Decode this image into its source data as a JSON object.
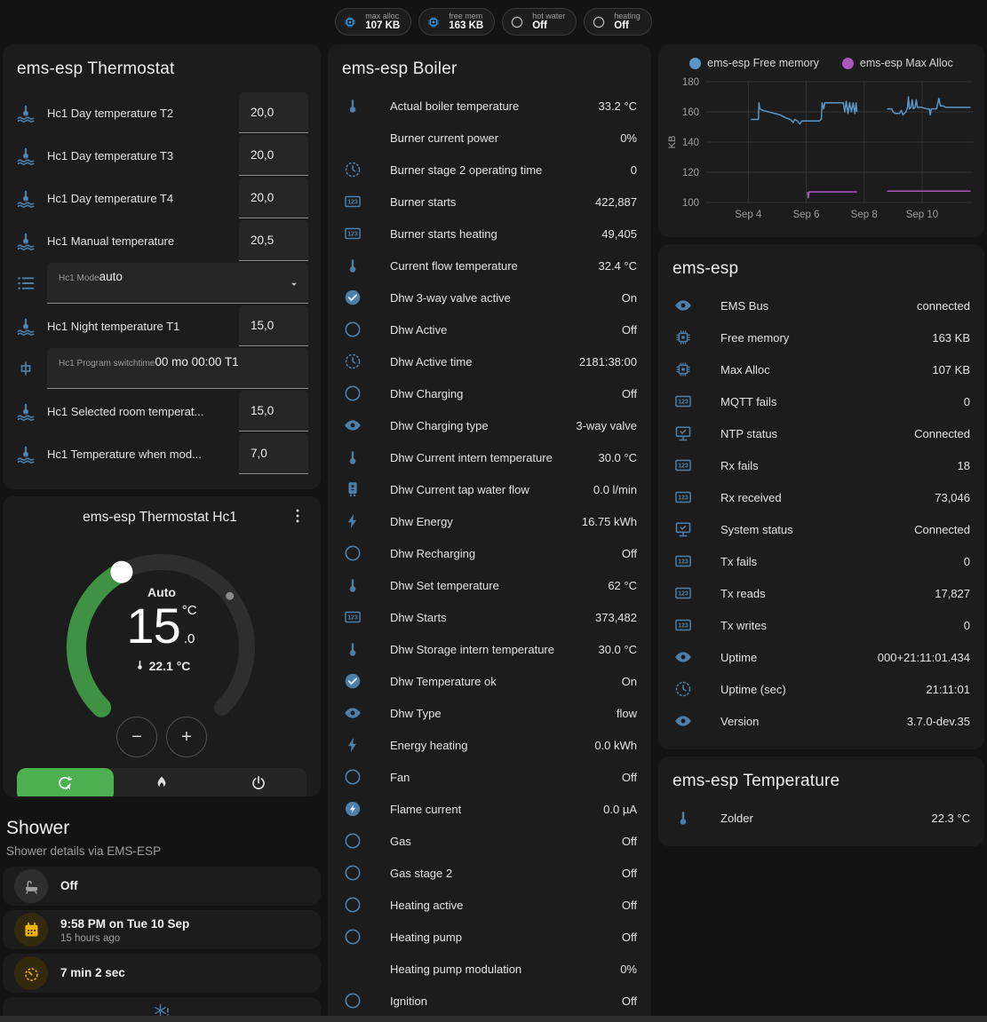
{
  "colors": {
    "page": "#131313",
    "card": "#1c1c1c",
    "icon_blue": "#4d7fab",
    "badge_blue": "#31a3f5",
    "green_arc": "#3f9244",
    "green_active": "#4caf50",
    "amber": "#eeb206",
    "chart_blue": "#5b96c8",
    "chart_purple": "#ae55c0",
    "secondary_text": "#9e9e9e"
  },
  "badges": [
    {
      "icon": "chip",
      "label": "max alloc",
      "value": "107 KB"
    },
    {
      "icon": "chip",
      "label": "free mem",
      "value": "163 KB"
    },
    {
      "icon": "circle",
      "label": "hot water",
      "value": "Off"
    },
    {
      "icon": "circle",
      "label": "heating",
      "value": "Off"
    }
  ],
  "thermostat": {
    "title": "ems-esp Thermostat",
    "items": [
      {
        "type": "number",
        "icon": "thermometer-water",
        "label": "Hc1 Day temperature T2",
        "value": "20,0"
      },
      {
        "type": "number",
        "icon": "thermometer-water",
        "label": "Hc1 Day temperature T3",
        "value": "20,0"
      },
      {
        "type": "number",
        "icon": "thermometer-water",
        "label": "Hc1 Day temperature T4",
        "value": "20,0"
      },
      {
        "type": "number",
        "icon": "thermometer-water",
        "label": "Hc1 Manual temperature",
        "value": "20,5"
      },
      {
        "type": "select",
        "icon": "list",
        "label": "Hc1 Mode",
        "value": "auto"
      },
      {
        "type": "number",
        "icon": "thermometer-water",
        "label": "Hc1 Night temperature T1",
        "value": "15,0"
      },
      {
        "type": "text",
        "icon": "pipe",
        "label": "Hc1 Program switchtime",
        "value": "00 mo 00:00 T1"
      },
      {
        "type": "number",
        "icon": "thermometer-water",
        "label": "Hc1 Selected room temperat...",
        "value": "15,0"
      },
      {
        "type": "number",
        "icon": "thermometer-water",
        "label": "Hc1 Temperature when mod...",
        "value": "7,0"
      }
    ]
  },
  "dial": {
    "title": "ems-esp Thermostat Hc1",
    "mode_label": "Auto",
    "target_int": "15",
    "target_unit": "°C",
    "target_dec": ".0",
    "current_temp": "22.1 °C",
    "minus": "−",
    "plus": "+",
    "modes": [
      {
        "icon": "thermostat-auto",
        "active": true
      },
      {
        "icon": "fire",
        "active": false
      },
      {
        "icon": "power",
        "active": false
      }
    ]
  },
  "shower": {
    "title": "Shower",
    "subtitle": "Shower details via EMS-ESP",
    "cards": [
      {
        "icon": "bathtub",
        "tint": "gray",
        "primary": "Off"
      },
      {
        "icon": "calendar",
        "tint": "amber",
        "primary": "9:58 PM on Tue 10 Sep",
        "secondary": "15 hours ago"
      },
      {
        "icon": "timer",
        "tint": "amber",
        "primary": "7 min 2 sec"
      },
      {
        "icon": "snowflake-alert",
        "tint": "blue",
        "centered": true
      }
    ]
  },
  "boiler": {
    "title": "ems-esp Boiler",
    "rows": [
      {
        "icon": "thermometer",
        "label": "Actual boiler temperature",
        "value": "33.2 °C"
      },
      {
        "icon": "angle",
        "label": "Burner current power",
        "value": "0%"
      },
      {
        "icon": "clock",
        "label": "Burner stage 2 operating time",
        "value": "0"
      },
      {
        "icon": "counter",
        "label": "Burner starts",
        "value": "422,887"
      },
      {
        "icon": "counter",
        "label": "Burner starts heating",
        "value": "49,405"
      },
      {
        "icon": "thermometer",
        "label": "Current flow temperature",
        "value": "32.4 °C"
      },
      {
        "icon": "check-circle",
        "label": "Dhw 3-way valve active",
        "value": "On"
      },
      {
        "icon": "circle",
        "label": "Dhw Active",
        "value": "Off"
      },
      {
        "icon": "clock",
        "label": "Dhw Active time",
        "value": "2181:38:00"
      },
      {
        "icon": "circle",
        "label": "Dhw Charging",
        "value": "Off"
      },
      {
        "icon": "eye",
        "label": "Dhw Charging type",
        "value": "3-way valve"
      },
      {
        "icon": "thermometer",
        "label": "Dhw Current intern temperature",
        "value": "30.0 °C"
      },
      {
        "icon": "water-boiler",
        "label": "Dhw Current tap water flow",
        "value": "0.0 l/min"
      },
      {
        "icon": "flash",
        "label": "Dhw Energy",
        "value": "16.75 kWh"
      },
      {
        "icon": "circle",
        "label": "Dhw Recharging",
        "value": "Off"
      },
      {
        "icon": "thermometer",
        "label": "Dhw Set temperature",
        "value": "62 °C"
      },
      {
        "icon": "counter",
        "label": "Dhw Starts",
        "value": "373,482"
      },
      {
        "icon": "thermometer",
        "label": "Dhw Storage intern temperature",
        "value": "30.0 °C"
      },
      {
        "icon": "check-circle",
        "label": "Dhw Temperature ok",
        "value": "On"
      },
      {
        "icon": "eye",
        "label": "Dhw Type",
        "value": "flow"
      },
      {
        "icon": "flash",
        "label": "Energy heating",
        "value": "0.0 kWh"
      },
      {
        "icon": "circle",
        "label": "Fan",
        "value": "Off"
      },
      {
        "icon": "flash-circle",
        "label": "Flame current",
        "value": "0.0 µA"
      },
      {
        "icon": "circle",
        "label": "Gas",
        "value": "Off"
      },
      {
        "icon": "circle",
        "label": "Gas stage 2",
        "value": "Off"
      },
      {
        "icon": "circle",
        "label": "Heating active",
        "value": "Off"
      },
      {
        "icon": "circle",
        "label": "Heating pump",
        "value": "Off"
      },
      {
        "icon": "angle",
        "label": "Heating pump modulation",
        "value": "0%"
      },
      {
        "icon": "circle",
        "label": "Ignition",
        "value": "Off"
      }
    ]
  },
  "chart": {
    "chart_data": {
      "type": "line",
      "ylabel": "KB",
      "ylim": [
        100,
        180
      ],
      "yticks": [
        100,
        120,
        140,
        160,
        180
      ],
      "xlim": [
        2.55,
        11.75
      ],
      "xticks": [
        {
          "v": 4,
          "label": "Sep 4"
        },
        {
          "v": 6,
          "label": "Sep 6"
        },
        {
          "v": 8,
          "label": "Sep 8"
        },
        {
          "v": 10,
          "label": "Sep 10"
        }
      ],
      "grid": true,
      "legend_position": "top",
      "series": [
        {
          "name": "ems-esp Free memory",
          "color": "#5b96c8",
          "segments": [
            [
              [
                4.09,
                155
              ],
              [
                4.35,
                155
              ],
              [
                4.37,
                166
              ],
              [
                4.4,
                162
              ],
              [
                4.5,
                161
              ],
              [
                4.7,
                160
              ],
              [
                4.9,
                159
              ],
              [
                5.1,
                158
              ],
              [
                5.3,
                156
              ],
              [
                5.45,
                155
              ],
              [
                5.55,
                153
              ],
              [
                5.6,
                155
              ],
              [
                5.7,
                154
              ],
              [
                5.78,
                152
              ],
              [
                5.85,
                154
              ],
              [
                6.1,
                154
              ],
              [
                6.45,
                154
              ],
              [
                6.52,
                155
              ],
              [
                6.55,
                166
              ],
              [
                6.6,
                162
              ],
              [
                6.64,
                166
              ],
              [
                7.0,
                166
              ],
              [
                7.28,
                166
              ],
              [
                7.33,
                160
              ],
              [
                7.38,
                167
              ],
              [
                7.44,
                159
              ],
              [
                7.5,
                166
              ],
              [
                7.56,
                160
              ],
              [
                7.62,
                166
              ],
              [
                7.68,
                159
              ],
              [
                7.72,
                166
              ],
              [
                7.75,
                160
              ]
            ],
            [
              [
                8.79,
                162
              ],
              [
                8.95,
                162
              ],
              [
                9.0,
                160
              ],
              [
                9.08,
                159
              ],
              [
                9.22,
                159
              ],
              [
                9.28,
                161
              ],
              [
                9.34,
                158
              ],
              [
                9.44,
                160
              ],
              [
                9.5,
                163
              ],
              [
                9.53,
                170
              ],
              [
                9.56,
                162
              ],
              [
                9.62,
                163
              ],
              [
                9.66,
                168
              ],
              [
                9.7,
                162
              ],
              [
                9.76,
                163
              ],
              [
                9.8,
                168
              ],
              [
                9.84,
                163
              ],
              [
                10.0,
                163
              ],
              [
                10.15,
                162
              ],
              [
                10.25,
                162
              ],
              [
                10.28,
                158
              ],
              [
                10.32,
                162
              ],
              [
                10.5,
                162
              ],
              [
                10.58,
                169
              ],
              [
                10.63,
                164
              ],
              [
                10.72,
                164
              ],
              [
                10.82,
                163
              ],
              [
                11.1,
                163
              ],
              [
                11.4,
                163
              ],
              [
                11.67,
                163
              ]
            ]
          ]
        },
        {
          "name": "ems-esp Max Alloc",
          "color": "#ae55c0",
          "segments": [
            [
              [
                6.05,
                107
              ],
              [
                6.07,
                103
              ],
              [
                6.1,
                107
              ],
              [
                7.0,
                107
              ],
              [
                7.75,
                107
              ]
            ],
            [
              [
                8.79,
                107.5
              ],
              [
                10.2,
                107.5
              ],
              [
                11.67,
                107.5
              ]
            ]
          ]
        }
      ]
    }
  },
  "ems": {
    "title": "ems-esp",
    "rows": [
      {
        "icon": "eye",
        "label": "EMS Bus",
        "value": "connected"
      },
      {
        "icon": "chip",
        "label": "Free memory",
        "value": "163 KB"
      },
      {
        "icon": "chip",
        "label": "Max Alloc",
        "value": "107 KB"
      },
      {
        "icon": "counter",
        "label": "MQTT fails",
        "value": "0"
      },
      {
        "icon": "monitor-check",
        "label": "NTP status",
        "value": "Connected"
      },
      {
        "icon": "counter",
        "label": "Rx fails",
        "value": "18"
      },
      {
        "icon": "counter",
        "label": "Rx received",
        "value": "73,046"
      },
      {
        "icon": "monitor-check",
        "label": "System status",
        "value": "Connected"
      },
      {
        "icon": "counter",
        "label": "Tx fails",
        "value": "0"
      },
      {
        "icon": "counter",
        "label": "Tx reads",
        "value": "17,827"
      },
      {
        "icon": "counter",
        "label": "Tx writes",
        "value": "0"
      },
      {
        "icon": "eye",
        "label": "Uptime",
        "value": "000+21:11:01.434"
      },
      {
        "icon": "clock",
        "label": "Uptime (sec)",
        "value": "21:11:01"
      },
      {
        "icon": "eye",
        "label": "Version",
        "value": "3.7.0-dev.35"
      }
    ]
  },
  "temperature": {
    "title": "ems-esp Temperature",
    "rows": [
      {
        "icon": "thermometer",
        "label": "Zolder",
        "value": "22.3 °C"
      }
    ]
  }
}
